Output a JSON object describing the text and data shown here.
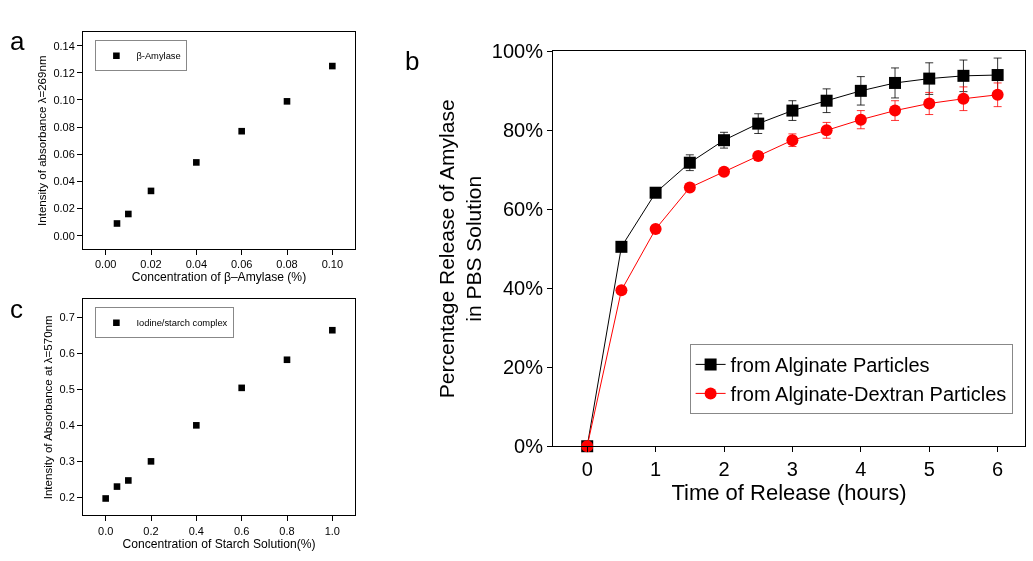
{
  "chart_data": [
    {
      "type": "scatter",
      "annotations": [
        "a"
      ],
      "xlabel": "Concentration of β–Amylase (%)",
      "ylabel": "Intensity of absorbance λ=269nm",
      "marker": "square",
      "legend": "top left",
      "series": [
        {
          "name": "β-Amylase",
          "color": "#000000",
          "x": [
            0.005,
            0.01,
            0.02,
            0.04,
            0.06,
            0.08,
            0.1
          ],
          "values": [
            0.009,
            0.016,
            0.033,
            0.054,
            0.077,
            0.099,
            0.125
          ]
        }
      ],
      "xlim": [
        -0.01,
        0.11
      ],
      "ylim": [
        -0.01,
        0.15
      ],
      "xticks": [
        {
          "value": 0,
          "label": "0.00"
        },
        {
          "value": 0.02,
          "label": "0.02"
        },
        {
          "value": 0.04,
          "label": "0.04"
        },
        {
          "value": 0.06,
          "label": "0.06"
        },
        {
          "value": 0.08,
          "label": "0.08"
        },
        {
          "value": 0.1,
          "label": "0.10"
        }
      ],
      "yticks": [
        {
          "value": 0,
          "label": "0.00"
        },
        {
          "value": 0.02,
          "label": "0.02"
        },
        {
          "value": 0.04,
          "label": "0.04"
        },
        {
          "value": 0.06,
          "label": "0.06"
        },
        {
          "value": 0.08,
          "label": "0.08"
        },
        {
          "value": 0.1,
          "label": "0.10"
        },
        {
          "value": 0.12,
          "label": "0.12"
        },
        {
          "value": 0.14,
          "label": "0.14"
        }
      ]
    },
    {
      "type": "line",
      "annotations": [
        "b"
      ],
      "xlabel": "Time of Release (hours)",
      "ylabel": "Percentage Release of Amylase\nin PBS Solution",
      "legend": "bottom right",
      "x": [
        0,
        0.5,
        1,
        1.5,
        2,
        2.5,
        3,
        3.5,
        4,
        4.5,
        5,
        5.5,
        6
      ],
      "series": [
        {
          "name": "from Alginate Particles",
          "color": "#000000",
          "marker": "square",
          "values": [
            0,
            50.5,
            64.2,
            71.8,
            77.5,
            81.7,
            85,
            87.5,
            90,
            92,
            93.1,
            93.8,
            94
          ],
          "errors": [
            null,
            null,
            null,
            2,
            2,
            2.5,
            2.5,
            3,
            3.6,
            3.8,
            4,
            4,
            4.3
          ]
        },
        {
          "name": "from Alginate-Dextran Particles",
          "color": "#ff0000",
          "marker": "circle",
          "values": [
            0,
            39.5,
            55,
            65.5,
            69.5,
            73.5,
            77.5,
            80,
            82.7,
            85,
            86.8,
            88,
            89
          ],
          "errors": [
            null,
            null,
            null,
            null,
            null,
            1,
            1.6,
            2,
            2.3,
            2.5,
            2.8,
            3,
            3
          ]
        }
      ],
      "xlim": [
        -0.5,
        6.4
      ],
      "ylim": [
        0,
        100
      ],
      "xticks": [
        0,
        1,
        2,
        3,
        4,
        5,
        6
      ],
      "yticks": [
        {
          "value": 0,
          "label": "0%"
        },
        {
          "value": 20,
          "label": "20%"
        },
        {
          "value": 40,
          "label": "40%"
        },
        {
          "value": 60,
          "label": "60%"
        },
        {
          "value": 80,
          "label": "80%"
        },
        {
          "value": 100,
          "label": "100%"
        }
      ]
    },
    {
      "type": "scatter",
      "annotations": [
        "c"
      ],
      "xlabel": "Concentration of Starch Solution(%)",
      "ylabel": "Intensity of Absorbance at λ=570nm",
      "marker": "square",
      "legend": "top left",
      "series": [
        {
          "name": "Iodine/starch complex",
          "color": "#000000",
          "x": [
            0,
            0.05,
            0.1,
            0.2,
            0.4,
            0.6,
            0.8,
            1.0
          ],
          "values": [
            0.197,
            0.23,
            0.247,
            0.3,
            0.4,
            0.504,
            0.582,
            0.664
          ]
        }
      ],
      "xlim": [
        -0.1,
        1.1
      ],
      "ylim": [
        0.15,
        0.75
      ],
      "xticks": [
        {
          "value": 0,
          "label": "0.0"
        },
        {
          "value": 0.2,
          "label": "0.2"
        },
        {
          "value": 0.4,
          "label": "0.4"
        },
        {
          "value": 0.6,
          "label": "0.6"
        },
        {
          "value": 0.8,
          "label": "0.8"
        },
        {
          "value": 1,
          "label": "1.0"
        }
      ],
      "yticks": [
        0.2,
        0.3,
        0.4,
        0.5,
        0.6,
        0.7
      ]
    }
  ]
}
